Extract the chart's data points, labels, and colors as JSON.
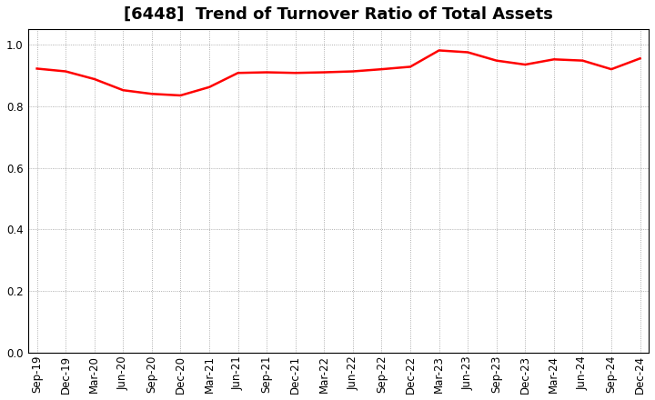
{
  "title": "[6448]  Trend of Turnover Ratio of Total Assets",
  "x_labels": [
    "Sep-19",
    "Dec-19",
    "Mar-20",
    "Jun-20",
    "Sep-20",
    "Dec-20",
    "Mar-21",
    "Jun-21",
    "Sep-21",
    "Dec-21",
    "Mar-22",
    "Jun-22",
    "Sep-22",
    "Dec-22",
    "Mar-23",
    "Jun-23",
    "Sep-23",
    "Dec-23",
    "Mar-24",
    "Jun-24",
    "Sep-24",
    "Dec-24"
  ],
  "values": [
    0.922,
    0.913,
    0.888,
    0.852,
    0.84,
    0.835,
    0.862,
    0.908,
    0.91,
    0.908,
    0.91,
    0.913,
    0.92,
    0.928,
    0.981,
    0.975,
    0.948,
    0.935,
    0.952,
    0.948,
    0.92,
    0.955
  ],
  "line_color": "#FF0000",
  "line_width": 1.8,
  "ylim": [
    0.0,
    1.05
  ],
  "yticks": [
    0.0,
    0.2,
    0.4,
    0.6,
    0.8,
    1.0
  ],
  "background_color": "#ffffff",
  "grid_color": "#999999",
  "title_fontsize": 13,
  "tick_fontsize": 8.5
}
